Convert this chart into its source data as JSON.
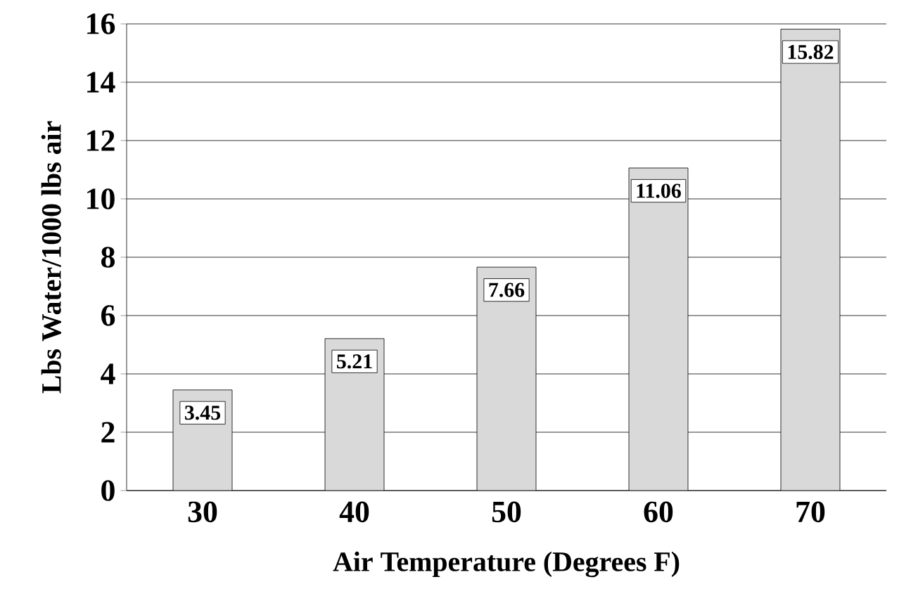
{
  "chart_data": {
    "type": "bar",
    "xlabel": "Air Temperature (Degrees F)",
    "ylabel": "Lbs Water/1000 lbs air",
    "categories": [
      "30",
      "40",
      "50",
      "60",
      "70"
    ],
    "values": [
      3.45,
      5.21,
      7.66,
      11.06,
      15.82
    ],
    "color": "#d9d9d9",
    "data_labels": true,
    "grid": "y",
    "ylim": [
      0,
      16
    ],
    "yticks": [
      0,
      2,
      4,
      6,
      8,
      10,
      12,
      14,
      16
    ]
  }
}
